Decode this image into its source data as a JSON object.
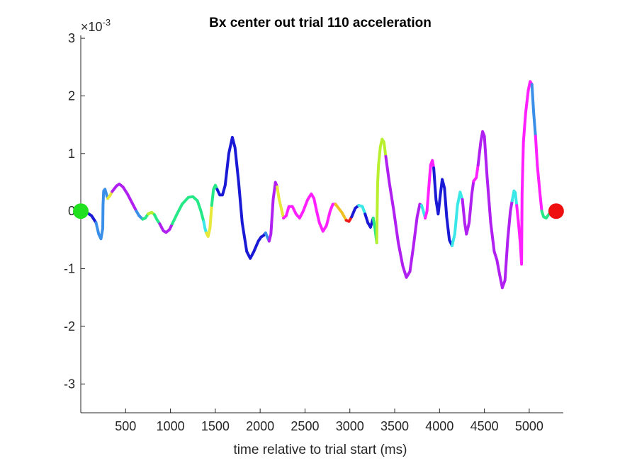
{
  "chart_data": {
    "type": "scatter",
    "title": "Bx  center out trial 110 acceleration",
    "xlabel": "time relative to trial start (ms)",
    "ylabel": "",
    "y_exponent_label": "×10",
    "y_exponent_power": "-3",
    "xlim": [
      0,
      5380
    ],
    "ylim": [
      -3.5,
      3.05
    ],
    "x_ticks": [
      500,
      1000,
      1500,
      2000,
      2500,
      3000,
      3500,
      4000,
      4500,
      5000
    ],
    "x_tick_labels": [
      "500",
      "1000",
      "1500",
      "2000",
      "2500",
      "3000",
      "3500",
      "4000",
      "4500",
      "5000"
    ],
    "y_ticks": [
      -3,
      -2,
      -1,
      0,
      1,
      2,
      3
    ],
    "y_tick_labels": [
      "-3",
      "-2",
      "-1",
      "0",
      "1",
      "2",
      "3"
    ],
    "grid": false,
    "box": false,
    "series": [
      {
        "color": "#1a1ad6",
        "points": [
          [
            0,
            0
          ],
          [
            60,
            -0.02
          ],
          [
            120,
            -0.08
          ],
          [
            170,
            -0.2
          ]
        ]
      },
      {
        "color": "#3a8fe8",
        "points": [
          [
            170,
            -0.2
          ],
          [
            200,
            -0.4
          ],
          [
            225,
            -0.48
          ],
          [
            245,
            -0.3
          ],
          [
            248,
            0.1
          ],
          [
            255,
            0.35
          ],
          [
            270,
            0.38
          ],
          [
            285,
            0.3
          ],
          [
            300,
            0.22
          ]
        ]
      },
      {
        "color": "#e8e83a",
        "points": [
          [
            300,
            0.22
          ],
          [
            330,
            0.28
          ],
          [
            350,
            0.34
          ]
        ]
      },
      {
        "color": "#b020f0",
        "points": [
          [
            350,
            0.34
          ],
          [
            400,
            0.44
          ],
          [
            430,
            0.47
          ],
          [
            470,
            0.42
          ],
          [
            520,
            0.3
          ],
          [
            580,
            0.12
          ],
          [
            620,
            0.0
          ]
        ]
      },
      {
        "color": "#3a8fe8",
        "points": [
          [
            620,
            0.0
          ],
          [
            650,
            -0.08
          ],
          [
            690,
            -0.14
          ]
        ]
      },
      {
        "color": "#27e887",
        "points": [
          [
            690,
            -0.14
          ],
          [
            720,
            -0.12
          ],
          [
            750,
            -0.05
          ]
        ]
      },
      {
        "color": "#b8f030",
        "points": [
          [
            750,
            -0.05
          ],
          [
            790,
            -0.02
          ],
          [
            820,
            -0.06
          ]
        ]
      },
      {
        "color": "#27e887",
        "points": [
          [
            820,
            -0.06
          ],
          [
            850,
            -0.15
          ],
          [
            880,
            -0.22
          ]
        ]
      },
      {
        "color": "#b020f0",
        "points": [
          [
            880,
            -0.22
          ],
          [
            920,
            -0.34
          ],
          [
            950,
            -0.37
          ],
          [
            990,
            -0.32
          ],
          [
            1020,
            -0.22
          ]
        ]
      },
      {
        "color": "#27e887",
        "points": [
          [
            1020,
            -0.22
          ],
          [
            1070,
            -0.06
          ],
          [
            1130,
            0.12
          ],
          [
            1200,
            0.24
          ],
          [
            1250,
            0.25
          ],
          [
            1300,
            0.18
          ],
          [
            1340,
            0.0
          ],
          [
            1370,
            -0.18
          ]
        ]
      },
      {
        "color": "#3ae8e8",
        "points": [
          [
            1370,
            -0.18
          ],
          [
            1385,
            -0.3
          ],
          [
            1400,
            -0.38
          ]
        ]
      },
      {
        "color": "#e8e83a",
        "points": [
          [
            1400,
            -0.38
          ],
          [
            1420,
            -0.44
          ],
          [
            1440,
            -0.3
          ],
          [
            1460,
            0.1
          ]
        ]
      },
      {
        "color": "#27e887",
        "points": [
          [
            1460,
            0.1
          ],
          [
            1480,
            0.38
          ],
          [
            1500,
            0.45
          ],
          [
            1520,
            0.38
          ]
        ]
      },
      {
        "color": "#1a1ad6",
        "points": [
          [
            1520,
            0.38
          ],
          [
            1550,
            0.28
          ],
          [
            1580,
            0.28
          ],
          [
            1610,
            0.45
          ],
          [
            1650,
            1.0
          ],
          [
            1690,
            1.28
          ],
          [
            1720,
            1.1
          ],
          [
            1760,
            0.5
          ],
          [
            1800,
            -0.2
          ],
          [
            1850,
            -0.7
          ],
          [
            1890,
            -0.82
          ],
          [
            1930,
            -0.7
          ],
          [
            1980,
            -0.52
          ],
          [
            2010,
            -0.45
          ],
          [
            2040,
            -0.42
          ],
          [
            2060,
            -0.38
          ]
        ]
      },
      {
        "color": "#3a8fe8",
        "points": [
          [
            2060,
            -0.38
          ],
          [
            2080,
            -0.45
          ],
          [
            2100,
            -0.52
          ]
        ]
      },
      {
        "color": "#b020f0",
        "points": [
          [
            2100,
            -0.52
          ],
          [
            2120,
            -0.4
          ],
          [
            2145,
            0.2
          ],
          [
            2170,
            0.5
          ],
          [
            2190,
            0.42
          ]
        ]
      },
      {
        "color": "#e8e83a",
        "points": [
          [
            2190,
            0.42
          ],
          [
            2210,
            0.22
          ],
          [
            2235,
            0.05
          ],
          [
            2260,
            -0.12
          ]
        ]
      },
      {
        "color": "#ff20ff",
        "points": [
          [
            2260,
            -0.12
          ],
          [
            2290,
            -0.08
          ],
          [
            2320,
            0.08
          ],
          [
            2360,
            0.08
          ],
          [
            2400,
            -0.05
          ],
          [
            2440,
            -0.12
          ],
          [
            2480,
            0.0
          ],
          [
            2530,
            0.2
          ],
          [
            2570,
            0.3
          ],
          [
            2600,
            0.22
          ],
          [
            2630,
            0.0
          ],
          [
            2660,
            -0.2
          ],
          [
            2700,
            -0.35
          ],
          [
            2740,
            -0.25
          ],
          [
            2780,
            0.0
          ],
          [
            2810,
            0.12
          ],
          [
            2840,
            0.12
          ]
        ]
      },
      {
        "color": "#f0c020",
        "points": [
          [
            2840,
            0.12
          ],
          [
            2870,
            0.06
          ],
          [
            2910,
            -0.02
          ],
          [
            2960,
            -0.16
          ]
        ]
      },
      {
        "color": "#ee1a1a",
        "points": [
          [
            2960,
            -0.16
          ],
          [
            2990,
            -0.18
          ],
          [
            3020,
            -0.1
          ]
        ]
      },
      {
        "color": "#1a1ad6",
        "points": [
          [
            3020,
            -0.1
          ],
          [
            3060,
            0.05
          ],
          [
            3100,
            0.1
          ]
        ]
      },
      {
        "color": "#3ae8e8",
        "points": [
          [
            3100,
            0.1
          ],
          [
            3140,
            0.08
          ],
          [
            3170,
            -0.05
          ]
        ]
      },
      {
        "color": "#1a1ad6",
        "points": [
          [
            3170,
            -0.05
          ],
          [
            3200,
            -0.2
          ],
          [
            3230,
            -0.28
          ],
          [
            3260,
            -0.12
          ]
        ]
      },
      {
        "color": "#27e887",
        "points": [
          [
            3260,
            -0.12
          ],
          [
            3280,
            -0.3
          ],
          [
            3300,
            -0.55
          ]
        ]
      },
      {
        "color": "#b8f030",
        "points": [
          [
            3300,
            -0.55
          ],
          [
            3305,
            0.0
          ],
          [
            3310,
            0.5
          ],
          [
            3320,
            0.8
          ],
          [
            3340,
            1.12
          ],
          [
            3360,
            1.25
          ],
          [
            3380,
            1.2
          ],
          [
            3400,
            0.95
          ]
        ]
      },
      {
        "color": "#b020f0",
        "points": [
          [
            3400,
            0.95
          ],
          [
            3440,
            0.5
          ],
          [
            3490,
            0.0
          ],
          [
            3540,
            -0.55
          ],
          [
            3590,
            -0.95
          ],
          [
            3630,
            -1.15
          ],
          [
            3670,
            -1.05
          ],
          [
            3710,
            -0.6
          ],
          [
            3750,
            -0.1
          ],
          [
            3780,
            0.12
          ],
          [
            3800,
            0.1
          ]
        ]
      },
      {
        "color": "#3ae8e8",
        "points": [
          [
            3800,
            0.1
          ],
          [
            3820,
            0.0
          ],
          [
            3840,
            -0.12
          ]
        ]
      },
      {
        "color": "#ff20ff",
        "points": [
          [
            3840,
            -0.12
          ],
          [
            3860,
            0.0
          ],
          [
            3880,
            0.4
          ],
          [
            3900,
            0.8
          ],
          [
            3920,
            0.88
          ],
          [
            3935,
            0.75
          ]
        ]
      },
      {
        "color": "#1a1ad6",
        "points": [
          [
            3935,
            0.75
          ],
          [
            3960,
            0.2
          ],
          [
            3985,
            -0.05
          ],
          [
            4010,
            0.3
          ],
          [
            4030,
            0.55
          ],
          [
            4055,
            0.4
          ],
          [
            4080,
            -0.1
          ],
          [
            4110,
            -0.5
          ],
          [
            4140,
            -0.6
          ]
        ]
      },
      {
        "color": "#3ae8e8",
        "points": [
          [
            4140,
            -0.6
          ],
          [
            4170,
            -0.4
          ],
          [
            4200,
            0.1
          ],
          [
            4230,
            0.33
          ],
          [
            4255,
            0.2
          ]
        ]
      },
      {
        "color": "#b020f0",
        "points": [
          [
            4255,
            0.2
          ],
          [
            4280,
            -0.2
          ],
          [
            4300,
            -0.4
          ],
          [
            4330,
            -0.2
          ],
          [
            4360,
            0.3
          ],
          [
            4380,
            0.52
          ]
        ]
      },
      {
        "color": "#ff20ff",
        "points": [
          [
            4380,
            0.52
          ],
          [
            4410,
            0.58
          ],
          [
            4430,
            0.8
          ]
        ]
      },
      {
        "color": "#b020f0",
        "points": [
          [
            4430,
            0.8
          ],
          [
            4460,
            1.2
          ],
          [
            4480,
            1.38
          ],
          [
            4500,
            1.3
          ],
          [
            4530,
            0.6
          ],
          [
            4570,
            -0.2
          ],
          [
            4610,
            -0.7
          ],
          [
            4640,
            -0.85
          ],
          [
            4670,
            -1.1
          ],
          [
            4700,
            -1.33
          ],
          [
            4730,
            -1.2
          ],
          [
            4760,
            -0.5
          ],
          [
            4790,
            0.0
          ],
          [
            4810,
            0.18
          ]
        ]
      },
      {
        "color": "#3ae8e8",
        "points": [
          [
            4810,
            0.18
          ],
          [
            4830,
            0.35
          ],
          [
            4845,
            0.32
          ],
          [
            4860,
            0.1
          ]
        ]
      },
      {
        "color": "#ff20ff",
        "points": [
          [
            4860,
            0.1
          ],
          [
            4880,
            -0.2
          ],
          [
            4900,
            -0.55
          ],
          [
            4910,
            -0.8
          ],
          [
            4915,
            -0.92
          ],
          [
            4920,
            0.3
          ],
          [
            4935,
            1.2
          ],
          [
            4960,
            1.7
          ],
          [
            4990,
            2.1
          ],
          [
            5010,
            2.25
          ],
          [
            5030,
            2.2
          ]
        ]
      },
      {
        "color": "#3a8fe8",
        "points": [
          [
            5030,
            2.2
          ],
          [
            5050,
            1.7
          ],
          [
            5070,
            1.3
          ]
        ]
      },
      {
        "color": "#ff20ff",
        "points": [
          [
            5070,
            1.3
          ],
          [
            5090,
            0.8
          ],
          [
            5120,
            0.3
          ],
          [
            5140,
            0.0
          ]
        ]
      },
      {
        "color": "#27e887",
        "points": [
          [
            5140,
            0.0
          ],
          [
            5160,
            -0.1
          ],
          [
            5190,
            -0.12
          ],
          [
            5220,
            -0.05
          ]
        ]
      }
    ],
    "start_marker": {
      "x": 0,
      "y": 0,
      "color": "#20e020"
    },
    "end_marker": {
      "x": 5300,
      "y": 0,
      "color": "#ee1010"
    }
  }
}
